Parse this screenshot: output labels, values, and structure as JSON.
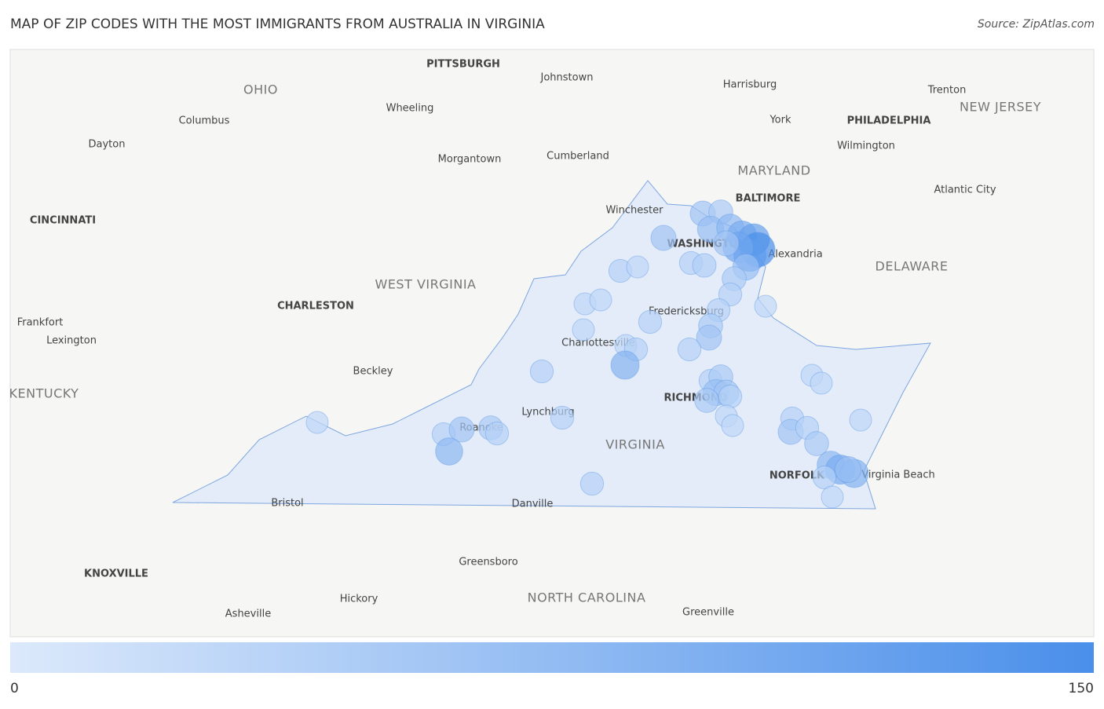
{
  "title": "MAP OF ZIP CODES WITH THE MOST IMMIGRANTS FROM AUSTRALIA IN VIRGINIA",
  "source": "Source: ZipAtlas.com",
  "places": [
    "PITTSBURGH",
    "Johnstown",
    "Harrisburg",
    "Trenton",
    "OHIO",
    "NEW JERSEY",
    "Columbus",
    "Wheeling",
    "York",
    "PHILADELPHIA",
    "Dayton",
    "Wilmington",
    "Cumberland",
    "Morgantown",
    "MARYLAND",
    "BALTIMORE",
    "Atlantic City",
    "Winchester",
    "CINCINNATI",
    "WASHINGTON",
    "Alexandria",
    "DELAWARE",
    "WEST VIRGINIA",
    "CHARLESTON",
    "Frankfort",
    "Lexington",
    "Fredericksburg",
    "Charlottesville",
    "Beckley",
    "KENTUCKY",
    "RICHMOND",
    "Lynchburg",
    "Roanoke",
    "VIRGINIA",
    "NORFOLK",
    "Virginia Beach",
    "Bristol",
    "Danville",
    "Greensboro",
    "KNOXVILLE",
    "NORTH CAROLINA",
    "Hickory",
    "Asheville",
    "Greenville"
  ],
  "markers": [
    60,
    50,
    70,
    80,
    100,
    120,
    150,
    130,
    110,
    60,
    70,
    50,
    40,
    40,
    50,
    60,
    40,
    45,
    60,
    40,
    30,
    40,
    30,
    30,
    30,
    30,
    40,
    30,
    40,
    90,
    40,
    40,
    50,
    70,
    60,
    50,
    40,
    30,
    30,
    30,
    30,
    40,
    60,
    40,
    50,
    30,
    80,
    100,
    90,
    40,
    30,
    70,
    30,
    40,
    60,
    50,
    40,
    80,
    40,
    40
  ],
  "legend": {
    "min": 0,
    "max": 150
  }
}
